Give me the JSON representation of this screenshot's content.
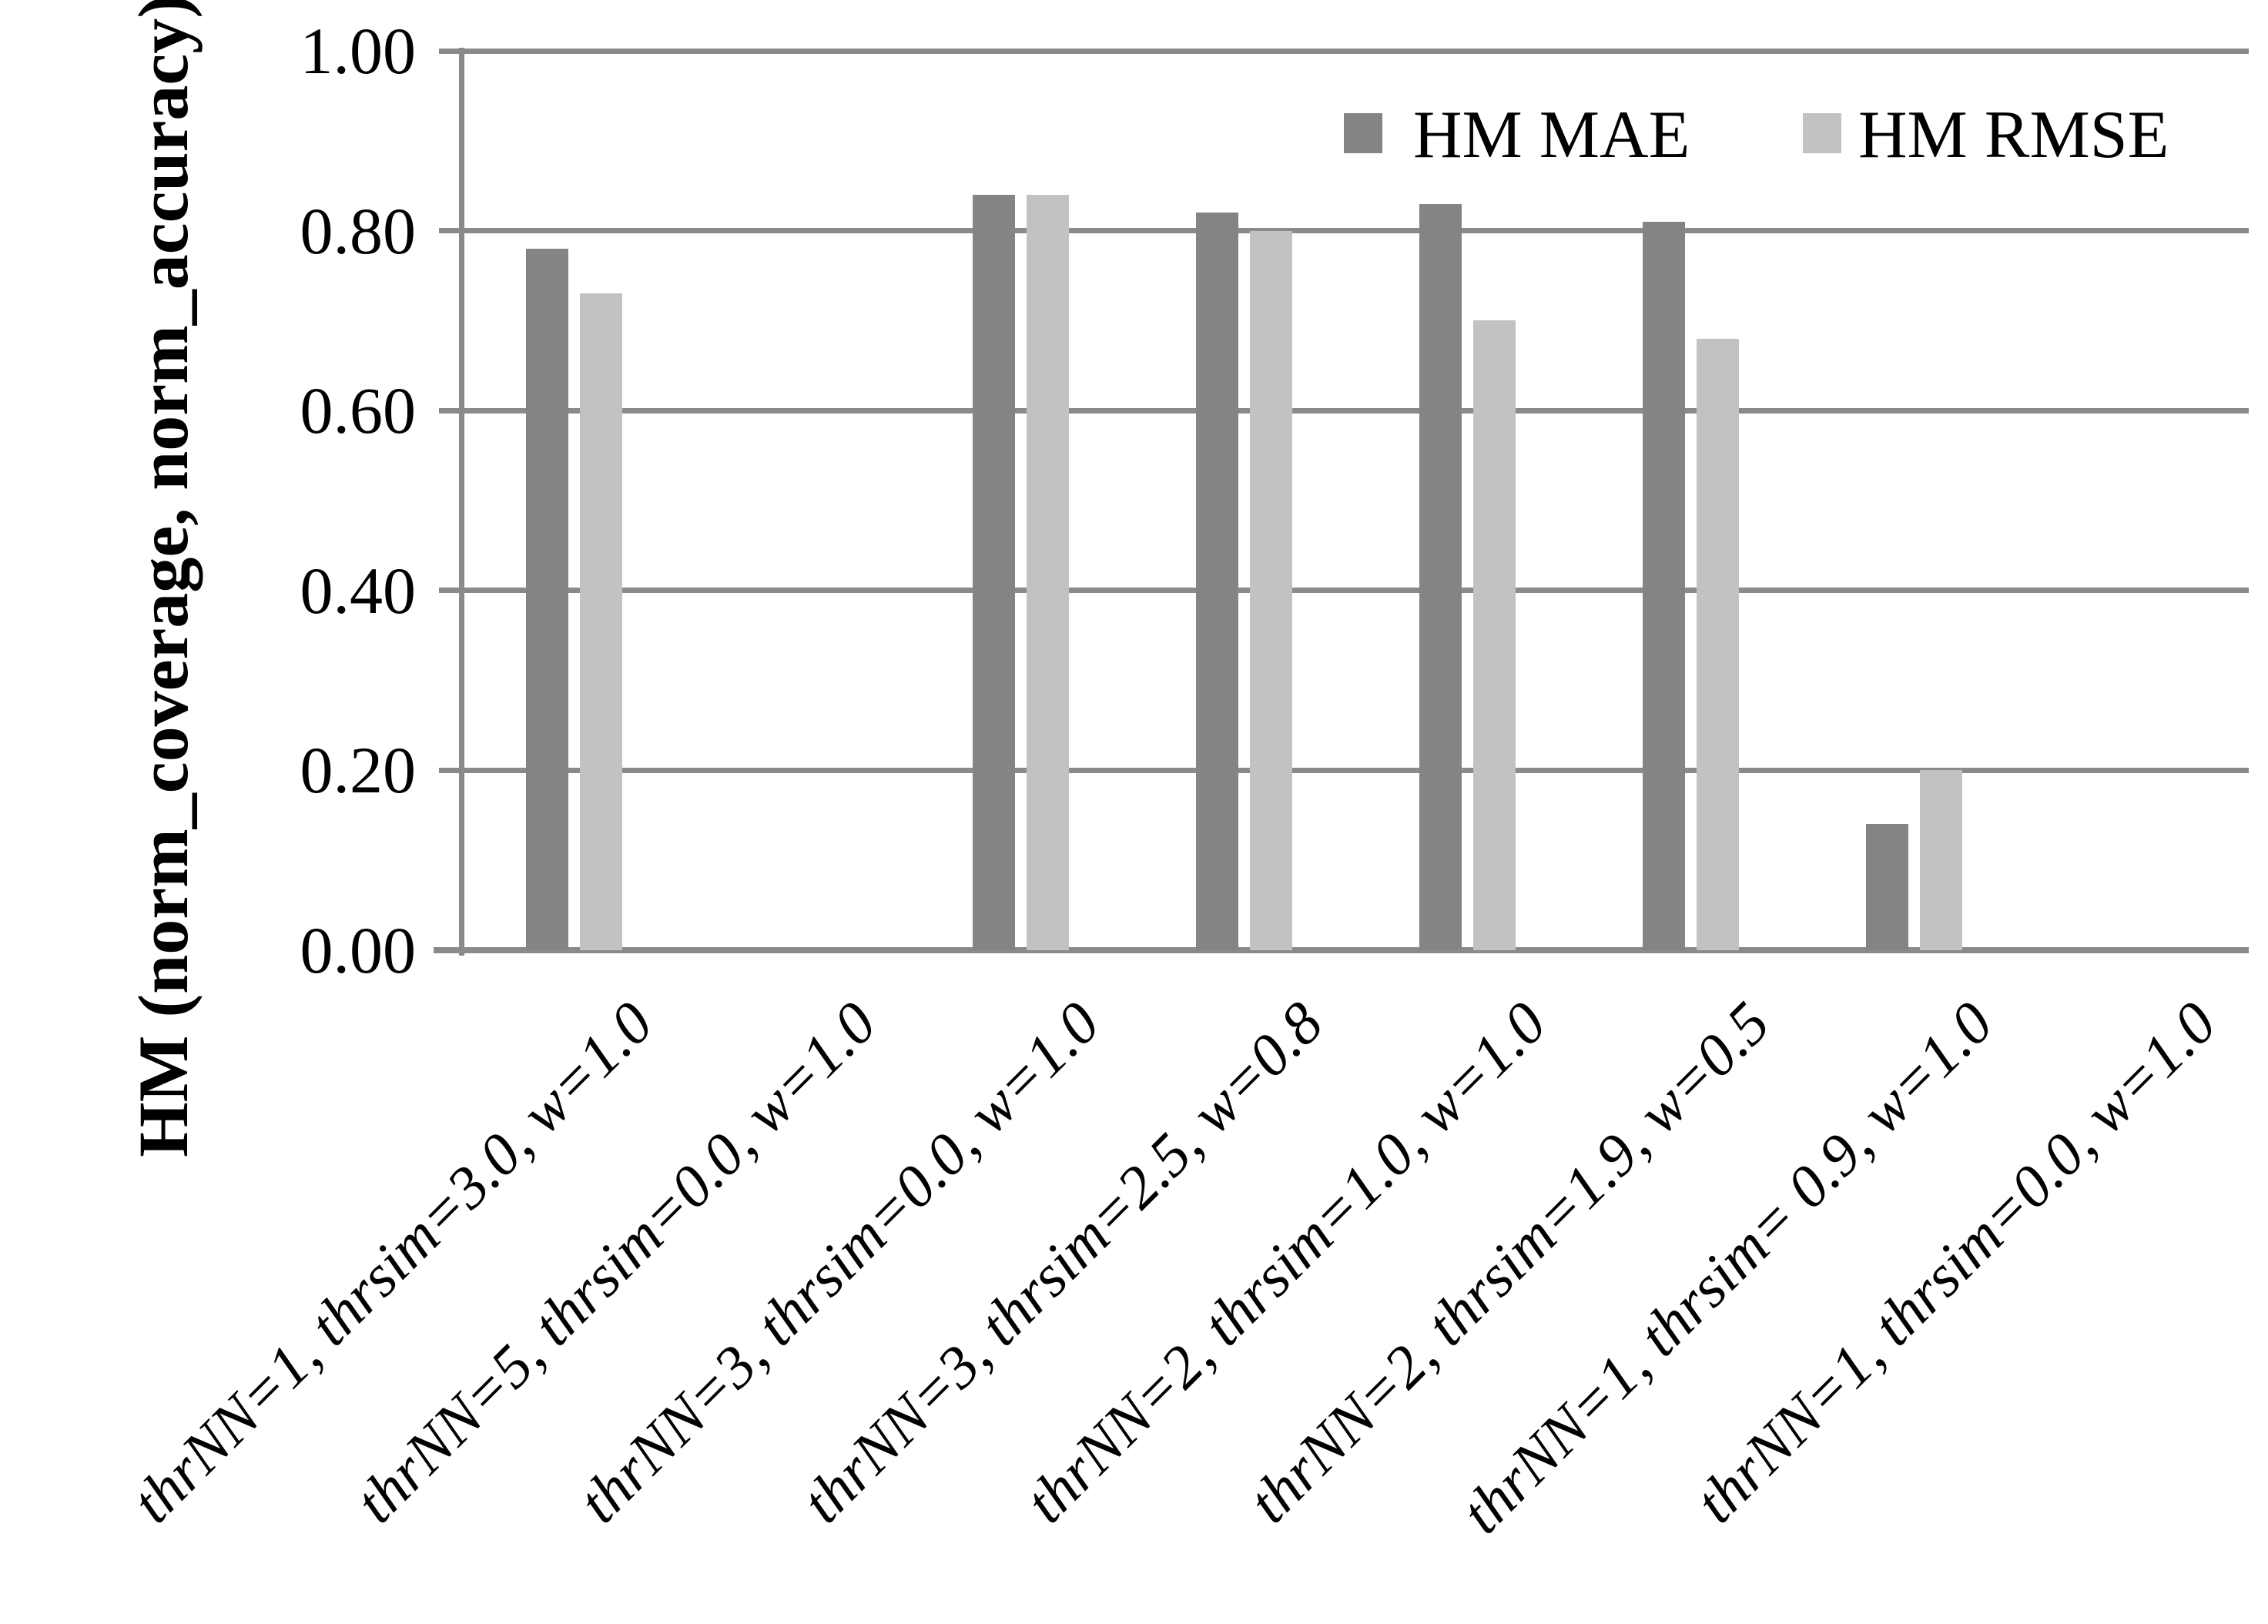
{
  "chart_data": {
    "type": "bar",
    "title": "",
    "categories": [
      "thrNN=1, thrsim=3.0, w=1.0",
      "thrNN=5, thrsim=0.0, w=1.0",
      "thrNN=3, thrsim=0.0, w=1.0",
      "thrNN=3, thrsim=2.5, w=0.8",
      "thrNN=2, thrsim=1.0, w=1.0",
      "thrNN=2, thrsim=1.9, w=0.5",
      "thrNN=1, thrsim= 0.9, w=1.0",
      "thrNN=1, thrsim=0.0, w=1.0"
    ],
    "series": [
      {
        "name": "HM MAE",
        "color": "#848484",
        "values": [
          0.78,
          0,
          0.84,
          0.82,
          0.83,
          0.81,
          0.14,
          0
        ]
      },
      {
        "name": "HM RMSE",
        "color": "#c2c2c2",
        "values": [
          0.73,
          0,
          0.84,
          0.8,
          0.7,
          0.68,
          0.2,
          0
        ]
      }
    ],
    "xlabel": "",
    "ylabel": "HM (norm_coverage, norm_accuracy)",
    "ylim": [
      0,
      1
    ],
    "ytick_labels": [
      "0.00",
      "0.20",
      "0.40",
      "0.60",
      "0.80",
      "1.00"
    ],
    "grid": "horizontal",
    "gridline_color": "#8a8a8a",
    "legend_position": "top-right-inside"
  }
}
